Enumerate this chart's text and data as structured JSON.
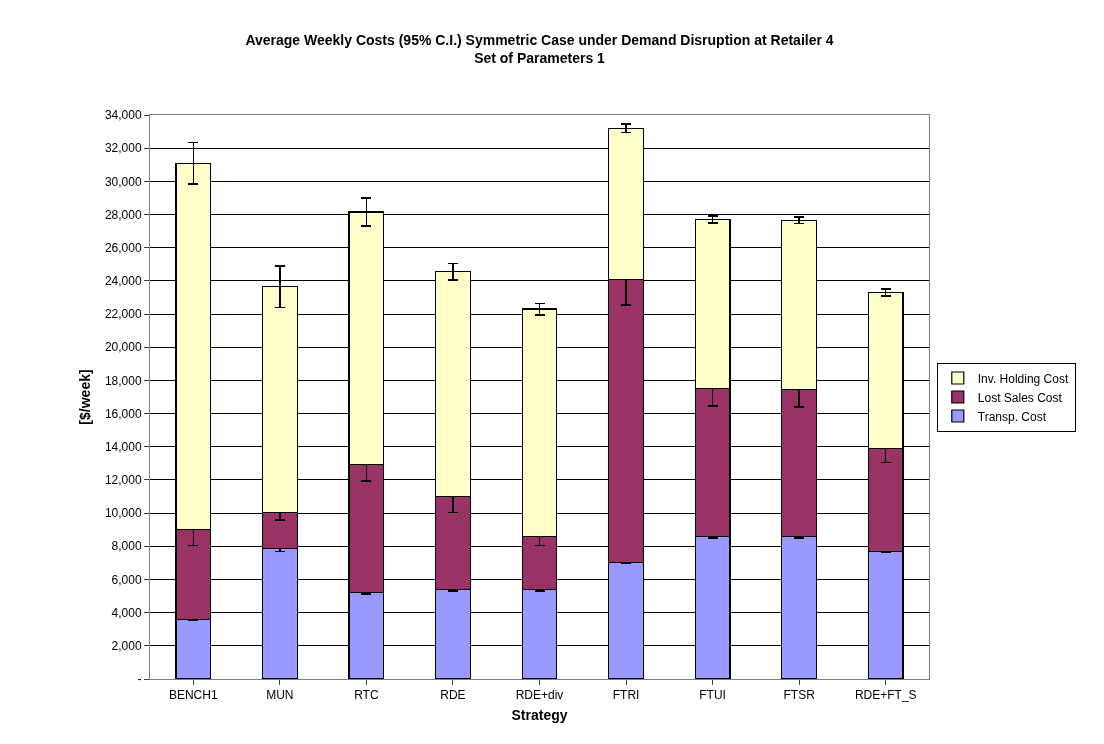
{
  "chart_data": {
    "type": "bar",
    "stacked": true,
    "title": "Average Weekly Costs (95% C.I.) Symmetric Case under Demand Disruption at Retailer 4\nSet of Parameters 1",
    "xlabel": "Strategy",
    "ylabel": "[$/week]",
    "categories": [
      "BENCH1",
      "MUN",
      "RTC",
      "RDE",
      "RDE+div",
      "FTRI",
      "FTUI",
      "FTSR",
      "RDE+FT_S"
    ],
    "series": [
      {
        "name": "Transp. Cost",
        "color": "#9999ff",
        "values": [
          3600,
          7850,
          5200,
          5400,
          5400,
          7000,
          8600,
          8600,
          7700
        ],
        "errors": [
          50,
          150,
          80,
          100,
          80,
          30,
          100,
          100,
          80
        ]
      },
      {
        "name": "Lost Sales Cost",
        "color": "#993366",
        "values": [
          5400,
          2200,
          7750,
          5600,
          3200,
          17100,
          8900,
          8850,
          6200
        ],
        "errors": [
          950,
          450,
          1000,
          950,
          550,
          1550,
          1050,
          1050,
          850
        ]
      },
      {
        "name": "Inv. Holding Cost",
        "color": "#ffffcc",
        "values": [
          22100,
          13600,
          15200,
          13550,
          13700,
          9100,
          10200,
          10200,
          9400
        ],
        "errors": [
          1250,
          1250,
          850,
          500,
          350,
          250,
          200,
          200,
          200
        ]
      }
    ],
    "ylim": [
      0,
      34000
    ],
    "yticks": [
      {
        "value": 0,
        "label": "-"
      },
      {
        "value": 2000,
        "label": "2,000"
      },
      {
        "value": 4000,
        "label": "4,000"
      },
      {
        "value": 6000,
        "label": "6,000"
      },
      {
        "value": 8000,
        "label": "8,000"
      },
      {
        "value": 10000,
        "label": "10,000"
      },
      {
        "value": 12000,
        "label": "12,000"
      },
      {
        "value": 14000,
        "label": "14,000"
      },
      {
        "value": 16000,
        "label": "16,000"
      },
      {
        "value": 18000,
        "label": "18,000"
      },
      {
        "value": 20000,
        "label": "20,000"
      },
      {
        "value": 22000,
        "label": "22,000"
      },
      {
        "value": 24000,
        "label": "24,000"
      },
      {
        "value": 26000,
        "label": "26,000"
      },
      {
        "value": 28000,
        "label": "28,000"
      },
      {
        "value": 30000,
        "label": "30,000"
      },
      {
        "value": 32000,
        "label": "32,000"
      },
      {
        "value": 34000,
        "label": "34,000"
      }
    ],
    "grid": "y",
    "legend": "right"
  }
}
